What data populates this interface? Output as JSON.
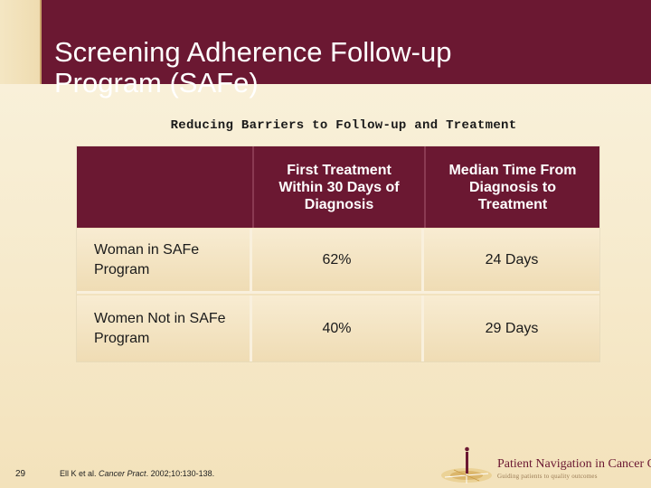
{
  "slide": {
    "title_line1": "Screening Adherence Follow-up",
    "title_line2": "Program (SAFe)",
    "subtitle": "Reducing Barriers to Follow-up and Treatment",
    "number": "29"
  },
  "table": {
    "headers": [
      "",
      "First Treatment Within 30 Days of Diagnosis",
      "Median Time From Diagnosis to Treatment"
    ],
    "rows": [
      {
        "label": "Woman in SAFe Program",
        "first_treatment": "62%",
        "median_time": "24 Days"
      },
      {
        "label": "Women Not in SAFe Program",
        "first_treatment": "40%",
        "median_time": "29 Days"
      }
    ]
  },
  "footer": {
    "citation_authors": "Ell K et al. ",
    "citation_journal": "Cancer Pract",
    "citation_rest": ". 2002;10:130-138."
  },
  "logo": {
    "name": "Patient Navigation in Cancer Care",
    "tagline": "Guiding patients to quality outcomes"
  },
  "colors": {
    "header_band": "#6b1832",
    "table_header": "#6b1832",
    "table_body": "#f2e2bf",
    "background": "#f7ecd0"
  }
}
